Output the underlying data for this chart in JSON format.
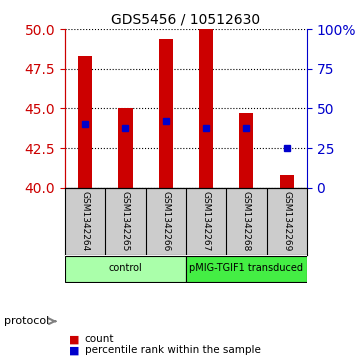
{
  "title": "GDS5456 / 10512630",
  "samples": [
    "GSM1342264",
    "GSM1342265",
    "GSM1342266",
    "GSM1342267",
    "GSM1342268",
    "GSM1342269"
  ],
  "bar_bottom": 40,
  "bar_tops": [
    48.3,
    45.0,
    49.4,
    50.0,
    44.7,
    40.8
  ],
  "pct_percents": [
    40,
    38,
    42,
    38,
    38,
    25
  ],
  "left_ylim": [
    40,
    50
  ],
  "left_yticks": [
    40,
    42.5,
    45,
    47.5,
    50
  ],
  "right_yticks": [
    0,
    25,
    50,
    75,
    100
  ],
  "right_ylim": [
    0,
    100
  ],
  "bar_color": "#cc0000",
  "dot_color": "#0000cc",
  "bg_color": "#ffffff",
  "label_bg_color": "#cccccc",
  "protocol_groups": [
    {
      "label": "control",
      "start": 0,
      "end": 3,
      "color": "#aaffaa"
    },
    {
      "label": "pMIG-TGIF1 transduced",
      "start": 3,
      "end": 6,
      "color": "#44ee44"
    }
  ],
  "legend_count_label": "count",
  "legend_pct_label": "percentile rank within the sample",
  "protocol_label": "protocol",
  "left_axis_color": "#cc0000",
  "right_axis_color": "#0000cc"
}
